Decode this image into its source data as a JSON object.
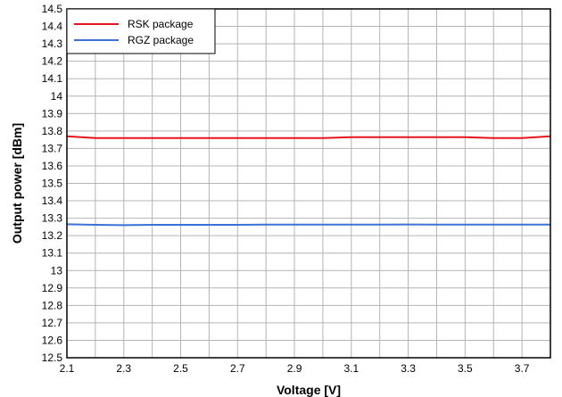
{
  "chart_data": {
    "type": "line",
    "title": "",
    "xlabel": "Voltage [V]",
    "ylabel": "Output power [dBm]",
    "xlim": [
      2.1,
      3.8
    ],
    "ylim": [
      12.5,
      14.5
    ],
    "x_ticks": [
      2.1,
      2.3,
      2.5,
      2.7,
      2.9,
      3.1,
      3.3,
      3.5,
      3.7
    ],
    "x_tick_labels": [
      "2.1",
      "2.3",
      "2.5",
      "2.7",
      "2.9",
      "3.1",
      "3.3",
      "3.5",
      "3.7"
    ],
    "y_ticks": [
      12.5,
      12.6,
      12.7,
      12.8,
      12.9,
      13,
      13.1,
      13.2,
      13.3,
      13.4,
      13.5,
      13.6,
      13.7,
      13.8,
      13.9,
      14,
      14.1,
      14.2,
      14.3,
      14.4,
      14.5
    ],
    "y_tick_labels": [
      "12.5",
      "12.6",
      "12.7",
      "12.8",
      "12.9",
      "13",
      "13.1",
      "13.2",
      "13.3",
      "13.4",
      "13.5",
      "13.6",
      "13.7",
      "13.8",
      "13.9",
      "14",
      "14.1",
      "14.2",
      "14.3",
      "14.4",
      "14.5"
    ],
    "grid": true,
    "legend_position": "top-left",
    "x": [
      2.1,
      2.2,
      2.3,
      2.4,
      2.5,
      2.6,
      2.7,
      2.8,
      2.9,
      3.0,
      3.1,
      3.2,
      3.3,
      3.4,
      3.5,
      3.6,
      3.7,
      3.8
    ],
    "series": [
      {
        "name": "RSK package",
        "color": "#e8141c",
        "values": [
          13.77,
          13.76,
          13.76,
          13.76,
          13.76,
          13.76,
          13.76,
          13.76,
          13.76,
          13.76,
          13.765,
          13.765,
          13.765,
          13.765,
          13.765,
          13.76,
          13.76,
          13.77
        ]
      },
      {
        "name": "RGZ package",
        "color": "#3b72d9",
        "values": [
          13.265,
          13.262,
          13.26,
          13.262,
          13.262,
          13.262,
          13.262,
          13.263,
          13.263,
          13.263,
          13.263,
          13.263,
          13.264,
          13.263,
          13.263,
          13.263,
          13.263,
          13.263
        ]
      }
    ]
  }
}
